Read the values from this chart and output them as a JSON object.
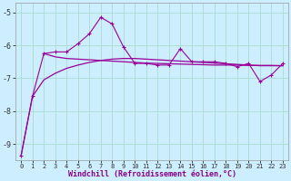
{
  "xlabel": "Windchill (Refroidissement éolien,°C)",
  "bg_color": "#cceeff",
  "line_color": "#990099",
  "grid_color": "#aaddcc",
  "xlim": [
    -0.5,
    23.5
  ],
  "ylim": [
    -9.5,
    -4.7
  ],
  "yticks": [
    -9,
    -8,
    -7,
    -6,
    -5
  ],
  "xticks": [
    0,
    1,
    2,
    3,
    4,
    5,
    6,
    7,
    8,
    9,
    10,
    11,
    12,
    13,
    14,
    15,
    16,
    17,
    18,
    19,
    20,
    21,
    22,
    23
  ],
  "line1_x": [
    0,
    1,
    2,
    3,
    4,
    5,
    6,
    7,
    8,
    9,
    10,
    11,
    12,
    13,
    14,
    15,
    16,
    17,
    18,
    19,
    20,
    21,
    22,
    23
  ],
  "line1_y": [
    -9.35,
    -7.55,
    -6.25,
    -6.2,
    -6.2,
    -5.95,
    -5.65,
    -5.15,
    -5.35,
    -6.05,
    -6.55,
    -6.55,
    -6.6,
    -6.6,
    -6.1,
    -6.5,
    -6.5,
    -6.5,
    -6.55,
    -6.65,
    -6.55,
    -7.1,
    -6.9,
    -6.55
  ],
  "line2_x": [
    2,
    3,
    4,
    5,
    6,
    7,
    8,
    9,
    10,
    11,
    12,
    13,
    14,
    15,
    16,
    17,
    18,
    19,
    20,
    21,
    22,
    23
  ],
  "line2_y": [
    -6.25,
    -6.35,
    -6.4,
    -6.42,
    -6.44,
    -6.46,
    -6.48,
    -6.5,
    -6.52,
    -6.54,
    -6.55,
    -6.56,
    -6.57,
    -6.58,
    -6.59,
    -6.6,
    -6.6,
    -6.6,
    -6.61,
    -6.61,
    -6.61,
    -6.62
  ],
  "line3_x": [
    0,
    1,
    2,
    3,
    4,
    5,
    6,
    7,
    8,
    9,
    10,
    11,
    12,
    13,
    14,
    15,
    16,
    17,
    18,
    19,
    20,
    21,
    22,
    23
  ],
  "line3_y": [
    -9.35,
    -7.55,
    -7.05,
    -6.85,
    -6.7,
    -6.6,
    -6.52,
    -6.46,
    -6.42,
    -6.4,
    -6.4,
    -6.42,
    -6.44,
    -6.46,
    -6.48,
    -6.5,
    -6.52,
    -6.54,
    -6.56,
    -6.58,
    -6.6,
    -6.62,
    -6.62,
    -6.62
  ]
}
